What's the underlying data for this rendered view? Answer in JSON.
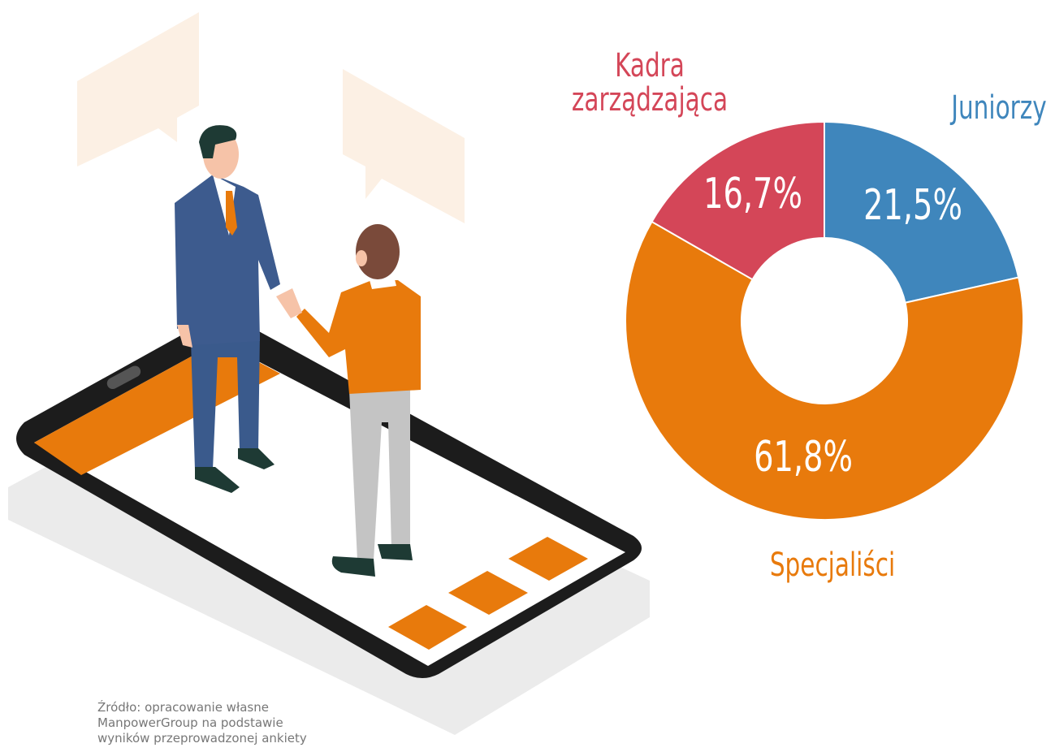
{
  "chart_data": {
    "type": "donut",
    "categories": [
      "Juniorzy",
      "Specjaliści",
      "Kadra zarządzająca"
    ],
    "values": [
      21.5,
      61.8,
      16.7
    ],
    "value_labels": [
      "21,5%",
      "61,8%",
      "16,7%"
    ],
    "colors": [
      "#3f86bc",
      "#e87a0c",
      "#d44658"
    ]
  },
  "source": "Źródło: opracowanie własne ManpowerGroup na podstawie wyników przeprowadzonej ankiety"
}
